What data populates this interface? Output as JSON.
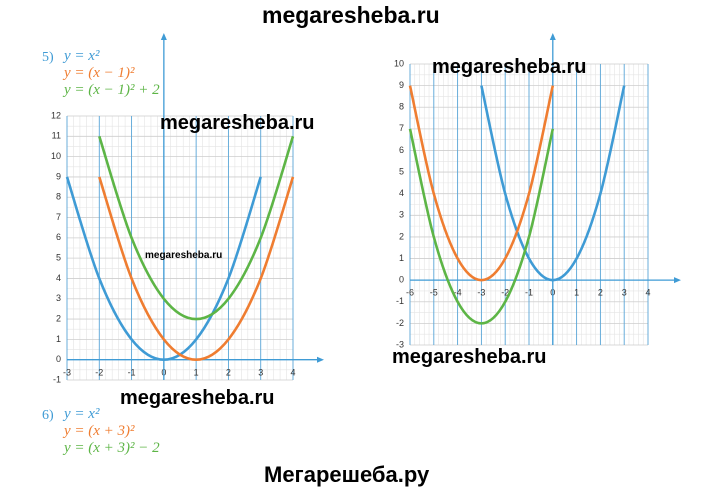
{
  "header": "megaresheba.ru",
  "footer": "Мегарешеба.ру",
  "watermarks": [
    "megaresheba.ru",
    "megaresheba.ru",
    "megaresheba.ru",
    "megaresheba.ru",
    "megaresheba.ru"
  ],
  "chart_data": [
    {
      "type": "line",
      "label": "5)",
      "x": [
        -3,
        -2,
        -1,
        0,
        1,
        2,
        3,
        4
      ],
      "series": [
        {
          "name": "y = x²",
          "color": "#3f9bd5",
          "values": [
            9,
            4,
            1,
            0,
            1,
            4,
            9,
            null
          ]
        },
        {
          "name": "y = (x − 1)²",
          "color": "#ef7d31",
          "values": [
            null,
            9,
            4,
            1,
            0,
            1,
            4,
            9
          ]
        },
        {
          "name": "y = (x − 1)² + 2",
          "color": "#5db546",
          "values": [
            null,
            11,
            6,
            3,
            2,
            3,
            6,
            11
          ]
        }
      ],
      "xlim": [
        -3,
        4
      ],
      "ylim": [
        -1,
        12
      ],
      "xticks": [
        -3,
        -2,
        -1,
        0,
        1,
        2,
        3,
        4
      ],
      "yticks": [
        -1,
        0,
        1,
        2,
        3,
        4,
        5,
        6,
        7,
        8,
        9,
        10,
        11,
        12
      ],
      "grid": true
    },
    {
      "type": "line",
      "label": "6)",
      "x": [
        -6,
        -5,
        -4,
        -3,
        -2,
        -1,
        0,
        1,
        2,
        3
      ],
      "series": [
        {
          "name": "y = x²",
          "color": "#3f9bd5",
          "values": [
            null,
            null,
            null,
            9,
            4,
            1,
            0,
            1,
            4,
            9
          ]
        },
        {
          "name": "y = (x + 3)²",
          "color": "#ef7d31",
          "values": [
            9,
            4,
            1,
            0,
            1,
            4,
            9,
            null,
            null,
            null
          ]
        },
        {
          "name": "y = (x + 3)² − 2",
          "color": "#5db546",
          "values": [
            7,
            2,
            -1,
            -2,
            -1,
            2,
            7,
            null,
            null,
            null
          ]
        }
      ],
      "xlim": [
        -6,
        4
      ],
      "ylim": [
        -3,
        10
      ],
      "xticks": [
        -6,
        -5,
        -4,
        -3,
        -2,
        -1,
        0,
        1,
        2,
        3,
        4
      ],
      "yticks": [
        -3,
        -2,
        -1,
        0,
        1,
        2,
        3,
        4,
        5,
        6,
        7,
        8,
        9,
        10
      ],
      "grid": true
    }
  ]
}
